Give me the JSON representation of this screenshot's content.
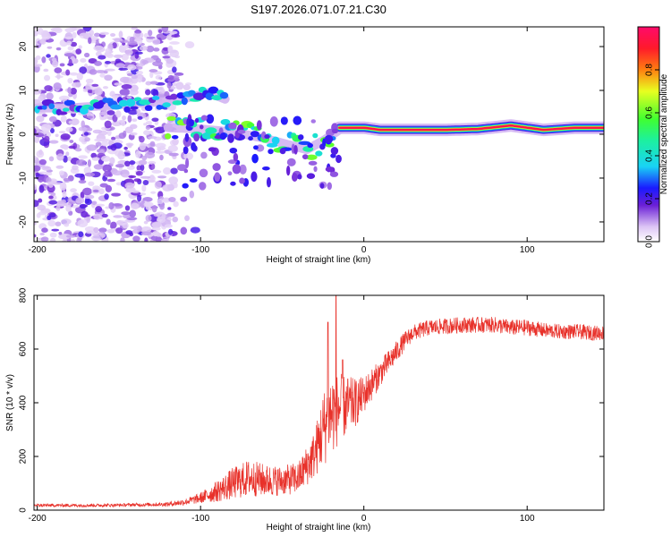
{
  "figure_title": "S197.2026.071.07.21.C30",
  "chart_data": [
    {
      "type": "heatmap",
      "xlabel": "Height of straight line (km)",
      "ylabel": "Frequency (Hz)",
      "xlim": [
        -202,
        147
      ],
      "ylim": [
        -24.5,
        24.5
      ],
      "xticks": [
        -200,
        -100,
        0,
        100
      ],
      "yticks": [
        -20,
        -10,
        0,
        10,
        20
      ],
      "colorbar": {
        "label": "Normalized spectral amplitude",
        "range": [
          0.0,
          1.0
        ],
        "ticks": [
          "0.0",
          "0.2",
          "0.4",
          "0.6",
          "0.8"
        ]
      },
      "noise_region_x": [
        -202,
        -115
      ],
      "ridges": [
        {
          "name": "upper ridge",
          "x": [
            -200,
            -180,
            -160,
            -140,
            -120,
            -105,
            -95,
            -85
          ],
          "y": [
            6,
            6,
            6.5,
            7,
            7.5,
            8.5,
            9.5,
            8
          ],
          "amplitude": 0.35
        },
        {
          "name": "lower ridge",
          "x": [
            -120,
            -100,
            -80,
            -60,
            -45,
            -35,
            -25,
            -15
          ],
          "y": [
            1.5,
            1.2,
            0.5,
            -1,
            -2.5,
            -3.5,
            -1.5,
            1
          ],
          "amplitude": 0.5
        },
        {
          "name": "converged tone",
          "x": [
            -15,
            0,
            10,
            30,
            50,
            70,
            90,
            110,
            130,
            147
          ],
          "y": [
            1.5,
            1.5,
            1.0,
            1.0,
            1.0,
            1.2,
            2.0,
            1.0,
            1.5,
            1.5
          ],
          "amplitude": 0.95
        }
      ]
    },
    {
      "type": "line",
      "xlabel": "Height of straight line (km)",
      "ylabel": "SNR (10 * v/v)",
      "xlim": [
        -202,
        147
      ],
      "ylim": [
        0,
        800
      ],
      "xticks": [
        -200,
        -100,
        0,
        100
      ],
      "yticks": [
        0,
        200,
        400,
        600,
        800
      ],
      "series": [
        {
          "name": "SNR",
          "color": "#e8312a",
          "x": [
            -202,
            -180,
            -160,
            -140,
            -120,
            -110,
            -100,
            -90,
            -80,
            -70,
            -60,
            -50,
            -40,
            -30,
            -25,
            -20,
            -15,
            -10,
            -5,
            0,
            5,
            10,
            15,
            20,
            25,
            30,
            40,
            50,
            60,
            70,
            80,
            90,
            100,
            110,
            120,
            130,
            140,
            147
          ],
          "values": [
            18,
            18,
            18,
            20,
            22,
            30,
            45,
            70,
            100,
            120,
            110,
            110,
            120,
            210,
            300,
            360,
            380,
            390,
            400,
            430,
            470,
            510,
            550,
            590,
            630,
            660,
            680,
            685,
            690,
            690,
            690,
            680,
            680,
            670,
            665,
            665,
            660,
            660
          ],
          "noise_amplitude": [
            6,
            6,
            6,
            6,
            8,
            12,
            20,
            40,
            60,
            70,
            60,
            55,
            60,
            90,
            140,
            160,
            130,
            110,
            90,
            70,
            60,
            50,
            45,
            40,
            35,
            30,
            30,
            30,
            30,
            30,
            30,
            30,
            30,
            28,
            28,
            28,
            28,
            28
          ],
          "spikes": [
            {
              "x": -17,
              "y": 800
            },
            {
              "x": -22,
              "y": 700
            },
            {
              "x": -13,
              "y": 560
            }
          ]
        }
      ]
    }
  ]
}
